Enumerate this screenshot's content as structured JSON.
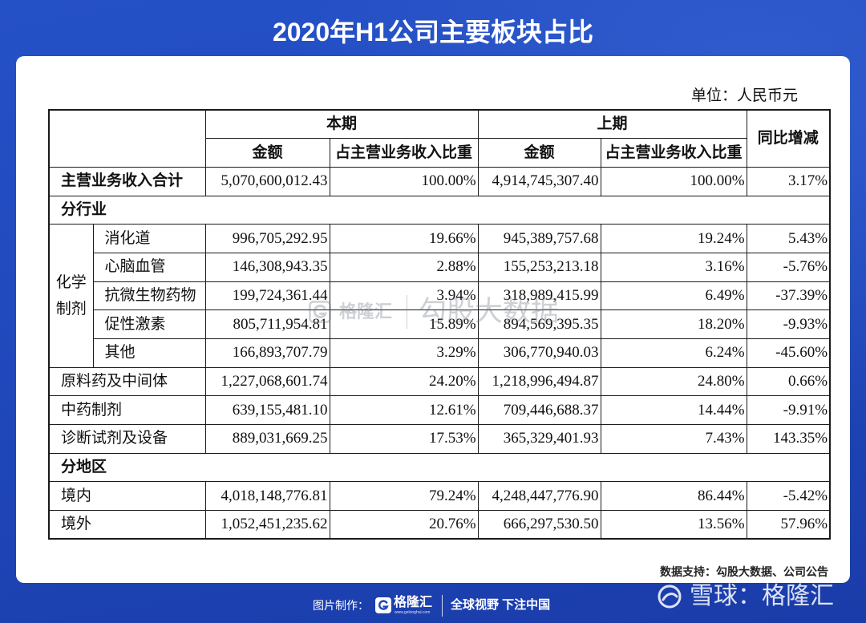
{
  "title": "2020年H1公司主要板块占比",
  "unit_note": "单位：人民币元",
  "table": {
    "header": {
      "current_period": "本期",
      "previous_period": "上期",
      "yoy_change": "同比增减",
      "current_amount": "金额",
      "current_share": "占主营业务收入比重",
      "previous_amount": "金额",
      "previous_share": "占主营业务收入比重"
    },
    "total": {
      "label": "主营业务收入合计",
      "current_amount": "5,070,600,012.43",
      "current_share": "100.00%",
      "previous_amount": "4,914,745,307.40",
      "previous_share": "100.00%",
      "yoy_change": "3.17%"
    },
    "by_industry": {
      "label": "分行业",
      "chemical_preparations": {
        "label_lines": [
          "化学",
          "制剂"
        ],
        "rows": [
          {
            "label": "消化道",
            "current_amount": "996,705,292.95",
            "current_share": "19.66%",
            "previous_amount": "945,389,757.68",
            "previous_share": "19.24%",
            "yoy_change": "5.43%"
          },
          {
            "label": "心脑血管",
            "current_amount": "146,308,943.35",
            "current_share": "2.88%",
            "previous_amount": "155,253,213.18",
            "previous_share": "3.16%",
            "yoy_change": "-5.76%"
          },
          {
            "label": "抗微生物药物",
            "current_amount": "199,724,361.44",
            "current_share": "3.94%",
            "previous_amount": "318,989,415.99",
            "previous_share": "6.49%",
            "yoy_change": "-37.39%"
          },
          {
            "label": "促性激素",
            "current_amount": "805,711,954.81",
            "current_share": "15.89%",
            "previous_amount": "894,569,395.35",
            "previous_share": "18.20%",
            "yoy_change": "-9.93%"
          },
          {
            "label": "其他",
            "current_amount": "166,893,707.79",
            "current_share": "3.29%",
            "previous_amount": "306,770,940.03",
            "previous_share": "6.24%",
            "yoy_change": "-45.60%"
          }
        ]
      },
      "rows": [
        {
          "label": "原料药及中间体",
          "current_amount": "1,227,068,601.74",
          "current_share": "24.20%",
          "previous_amount": "1,218,996,494.87",
          "previous_share": "24.80%",
          "yoy_change": "0.66%"
        },
        {
          "label": "中药制剂",
          "current_amount": "639,155,481.10",
          "current_share": "12.61%",
          "previous_amount": "709,446,688.37",
          "previous_share": "14.44%",
          "yoy_change": "-9.91%"
        },
        {
          "label": "诊断试剂及设备",
          "current_amount": "889,031,669.25",
          "current_share": "17.53%",
          "previous_amount": "365,329,401.93",
          "previous_share": "7.43%",
          "yoy_change": "143.35%"
        }
      ]
    },
    "by_region": {
      "label": "分地区",
      "rows": [
        {
          "label": "境内",
          "current_amount": "4,018,148,776.81",
          "current_share": "79.24%",
          "previous_amount": "4,248,447,776.90",
          "previous_share": "86.44%",
          "yoy_change": "-5.42%"
        },
        {
          "label": "境外",
          "current_amount": "1,052,451,235.62",
          "current_share": "20.76%",
          "previous_amount": "666,297,530.50",
          "previous_share": "13.56%",
          "yoy_change": "57.96%"
        }
      ]
    }
  },
  "watermark": {
    "brand": "格隆汇",
    "brand_icon": "gelonghui-logo-icon",
    "product": "勾股大数据"
  },
  "source_note": "数据支持：勾股大数据、公司公告",
  "footer": {
    "made_by_label": "图片制作：",
    "brand": "格隆汇",
    "brand_url": "www.gelonghui.com",
    "brand_icon": "gelonghui-logo-icon",
    "slogan": "全球视野 下注中国"
  },
  "xueqiu_watermark": {
    "text": "雪球：格隆汇",
    "icon": "snowball-logo-icon"
  },
  "colors": {
    "background": "#1f47ba",
    "card": "#ffffff",
    "text": "#111111",
    "rule": "#1a1a1a"
  }
}
